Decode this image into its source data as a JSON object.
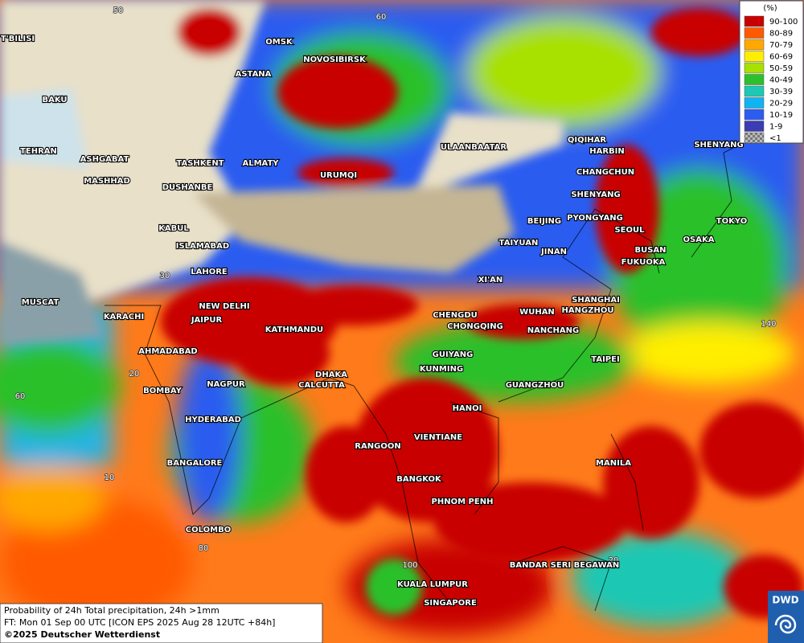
{
  "map": {
    "cities": [
      "OMSK",
      "NOVOSIBIRSK",
      "ASTANA",
      "T'BILISI",
      "BAKU",
      "TEHRAN",
      "ASHGABAT",
      "MASHHAD",
      "TASHKENT",
      "ALMATY",
      "DUSHANBE",
      "URUMQI",
      "ULAANBAATAR",
      "QIQIHAR",
      "HARBIN",
      "CHANGCHUN",
      "SHENYANG",
      "SAPPORO",
      "BEIJING",
      "PYONGYANG",
      "SEOUL",
      "TOKYO",
      "OSAKA",
      "BUSAN",
      "FUKUOKA",
      "KABUL",
      "ISLAMABAD",
      "TAIYUAN",
      "JINAN",
      "XI'AN",
      "LAHORE",
      "MUSCAT",
      "KARACHI",
      "NEW DELHI",
      "JAIPUR",
      "KATHMANDU",
      "CHENGDU",
      "CHONGQING",
      "WUHAN",
      "SHANGHAI",
      "HANGZHOU",
      "NANCHANG",
      "AHMADABAD",
      "GUIYANG",
      "TAIPEI",
      "DHAKA",
      "KUNMING",
      "CALCUTTA",
      "NAGPUR",
      "BOMBAY",
      "GUANGZHOU",
      "HANOI",
      "HYDERABAD",
      "RANGOON",
      "VIENTIANE",
      "BANGALORE",
      "MANILA",
      "BANGKOK",
      "PHNOM PENH",
      "COLOMBO",
      "BANDAR SERI BEGAWAN",
      "KUALA LUMPUR",
      "SINGAPORE"
    ],
    "grid_labels": [
      "50",
      "60",
      "30",
      "20",
      "140",
      "60",
      "10",
      "80",
      "100",
      "20"
    ]
  },
  "legend": {
    "title": "(%)",
    "entries": [
      {
        "label": "90-100",
        "color": "#c80000"
      },
      {
        "label": "80-89",
        "color": "#ff5a00"
      },
      {
        "label": "70-79",
        "color": "#ffa800"
      },
      {
        "label": "60-69",
        "color": "#ffee00"
      },
      {
        "label": "50-59",
        "color": "#a8e000"
      },
      {
        "label": "40-49",
        "color": "#2cc02c"
      },
      {
        "label": "30-39",
        "color": "#1ec8b4"
      },
      {
        "label": "20-29",
        "color": "#10b4f0"
      },
      {
        "label": "10-19",
        "color": "#2c5cf0"
      },
      {
        "label": "1-9",
        "color": "#3c3cb4"
      },
      {
        "label": "<1",
        "color": "#9a9a9a"
      }
    ]
  },
  "footer": {
    "line1": "Probability of 24h Total precipitation, 24h >1mm",
    "line2": "FT: Mon 01 Sep 00 UTC [ICON EPS 2025 Aug 28 12UTC +84h]",
    "line3": "©2025 Deutscher Wetterdienst"
  },
  "logo": "DWD"
}
